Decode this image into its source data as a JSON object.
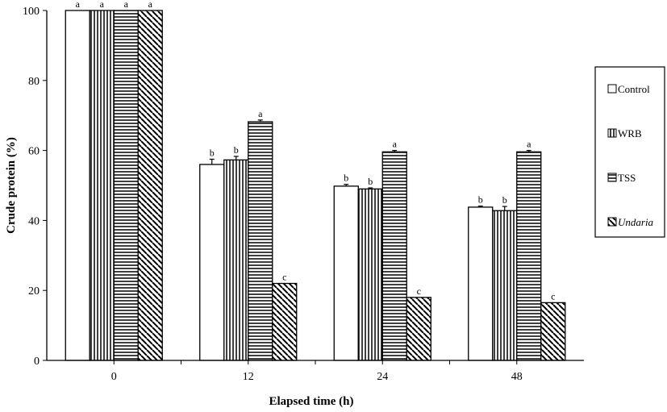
{
  "chart_data": {
    "type": "bar",
    "xlabel": "Elapsed time (h)",
    "ylabel": "Crude protein (%)",
    "ylim": [
      0,
      100
    ],
    "yticks": [
      "0",
      "20",
      "40",
      "60",
      "80",
      "100"
    ],
    "categories": [
      "0",
      "12",
      "24",
      "48"
    ],
    "grid": false,
    "legend_position": "right",
    "series": [
      {
        "name": "Control",
        "pattern": "open",
        "italic": false,
        "values": [
          100,
          56,
          49.8,
          43.8
        ],
        "errors": [
          0,
          1.5,
          0.5,
          0.3
        ],
        "labels": [
          "a",
          "b",
          "b",
          "b"
        ]
      },
      {
        "name": "WRB",
        "pattern": "vertical",
        "italic": false,
        "values": [
          100,
          57.3,
          49,
          42.8
        ],
        "errors": [
          0,
          1,
          0.3,
          1.2
        ],
        "labels": [
          "a",
          "b",
          "b",
          "b"
        ]
      },
      {
        "name": "TSS",
        "pattern": "horizontal",
        "italic": false,
        "values": [
          100,
          68.2,
          59.6,
          59.6
        ],
        "errors": [
          0,
          0.5,
          0.4,
          0.4
        ],
        "labels": [
          "a",
          "a",
          "a",
          "a"
        ]
      },
      {
        "name": "Undaria",
        "pattern": "diagonal",
        "italic": true,
        "values": [
          100,
          22,
          18,
          16.5
        ],
        "errors": [
          0,
          0,
          0,
          0
        ],
        "labels": [
          "a",
          "c",
          "c",
          "c"
        ]
      }
    ]
  }
}
